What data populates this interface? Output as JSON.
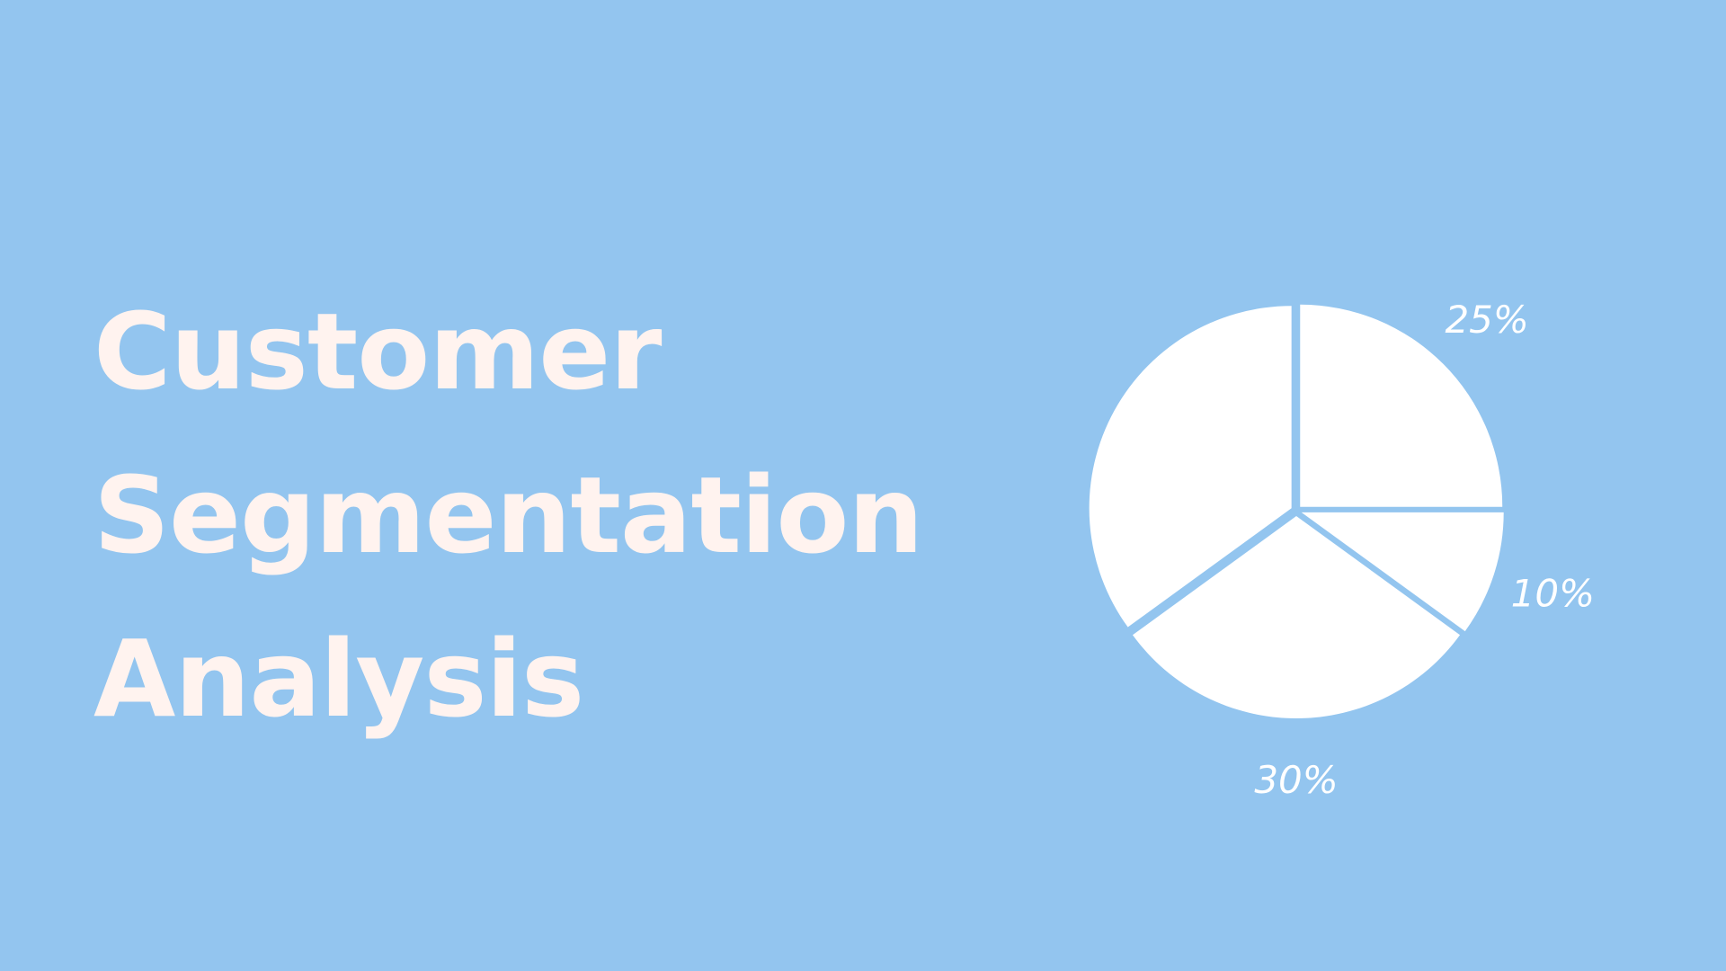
{
  "background_color": "#93C5EF",
  "title_color": "#FFF3EF",
  "title": {
    "line1": "Customer",
    "line2": "Segmentation",
    "line3": "Analysis"
  },
  "chart_data": {
    "type": "pie",
    "title": "",
    "slices": [
      {
        "label": "25%",
        "value": 25
      },
      {
        "label": "10%",
        "value": 10
      },
      {
        "label": "30%",
        "value": 30
      },
      {
        "label": "",
        "value": 35
      }
    ],
    "slice_color": "#FFFFFF",
    "legend": "none"
  }
}
